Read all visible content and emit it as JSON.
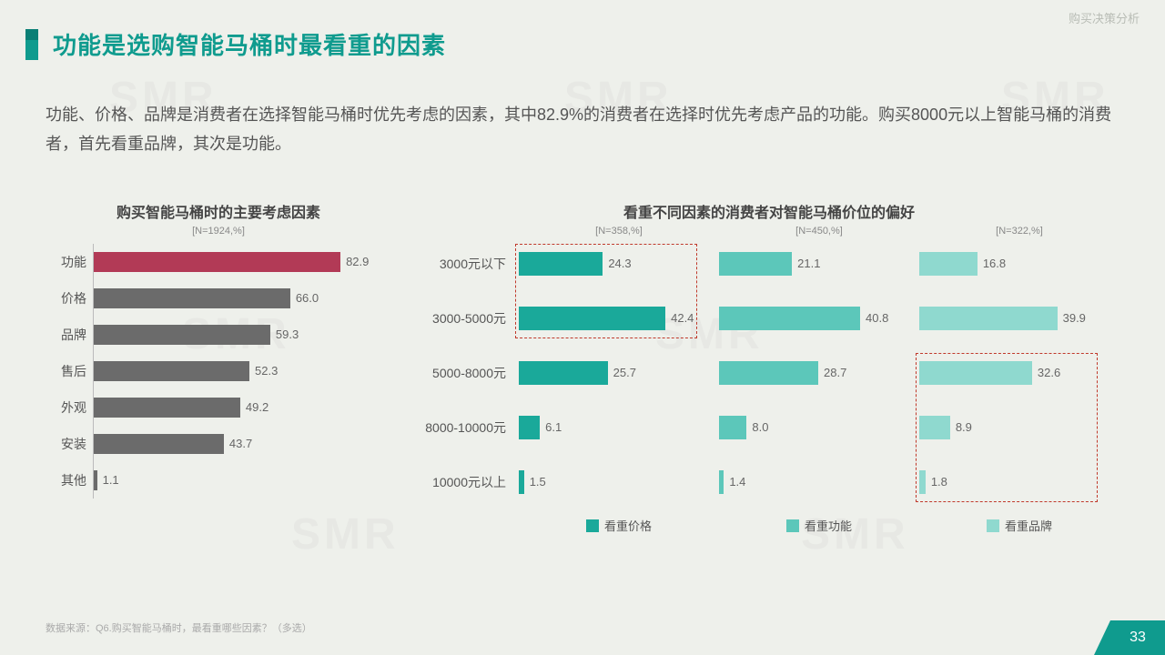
{
  "breadcrumb": "购买决策分析",
  "title": "功能是选购智能马桶时最看重的因素",
  "description": "功能、价格、品牌是消费者在选择智能马桶时优先考虑的因素，其中82.9%的消费者在选择时优先考虑产品的功能。购买8000元以上智能马桶的消费者，首先看重品牌，其次是功能。",
  "source": "数据来源：Q6.购买智能马桶时，最看重哪些因素？（多选）",
  "page_number": "33",
  "colors": {
    "accent": "#0f9b8e",
    "highlight_bar": "#b23a56",
    "gray_bar": "#6b6b6b",
    "series_price": "#1aa99a",
    "series_function": "#5cc7ba",
    "series_brand": "#8fd9cf",
    "dash_border": "#c94f4f",
    "background": "#eef0eb"
  },
  "left_chart": {
    "title": "购买智能马桶时的主要考虑因素",
    "n_label": "[N=1924,%]",
    "max": 100,
    "bars": [
      {
        "label": "功能",
        "value": 82.9,
        "color": "#b23a56"
      },
      {
        "label": "价格",
        "value": 66.0,
        "color": "#6b6b6b",
        "display": "66.0"
      },
      {
        "label": "品牌",
        "value": 59.3,
        "color": "#6b6b6b"
      },
      {
        "label": "售后",
        "value": 52.3,
        "color": "#6b6b6b"
      },
      {
        "label": "外观",
        "value": 49.2,
        "color": "#6b6b6b"
      },
      {
        "label": "安装",
        "value": 43.7,
        "color": "#6b6b6b"
      },
      {
        "label": "其他",
        "value": 1.1,
        "color": "#6b6b6b"
      }
    ]
  },
  "right_chart": {
    "title": "看重不同因素的消费者对智能马桶价位的偏好",
    "row_labels": [
      "3000元以下",
      "3000-5000元",
      "5000-8000元",
      "8000-10000元",
      "10000元以上"
    ],
    "max": 50,
    "series": [
      {
        "name": "看重价格",
        "n": "[N=358,%]",
        "color": "#1aa99a",
        "values": [
          24.3,
          42.4,
          25.7,
          6.1,
          1.5
        ]
      },
      {
        "name": "看重功能",
        "n": "[N=450,%]",
        "color": "#5cc7ba",
        "values": [
          21.1,
          40.8,
          28.7,
          8.0,
          1.4
        ],
        "displays": [
          "21.1",
          "40.8",
          "28.7",
          "8.0",
          "1.4"
        ]
      },
      {
        "name": "看重品牌",
        "n": "[N=322,%]",
        "color": "#8fd9cf",
        "values": [
          16.8,
          39.9,
          32.6,
          8.9,
          1.8
        ]
      }
    ],
    "highlight_boxes": [
      {
        "col": 0,
        "row_start": 0,
        "row_end": 1
      },
      {
        "col": 2,
        "row_start": 2,
        "row_end": 4
      }
    ]
  }
}
